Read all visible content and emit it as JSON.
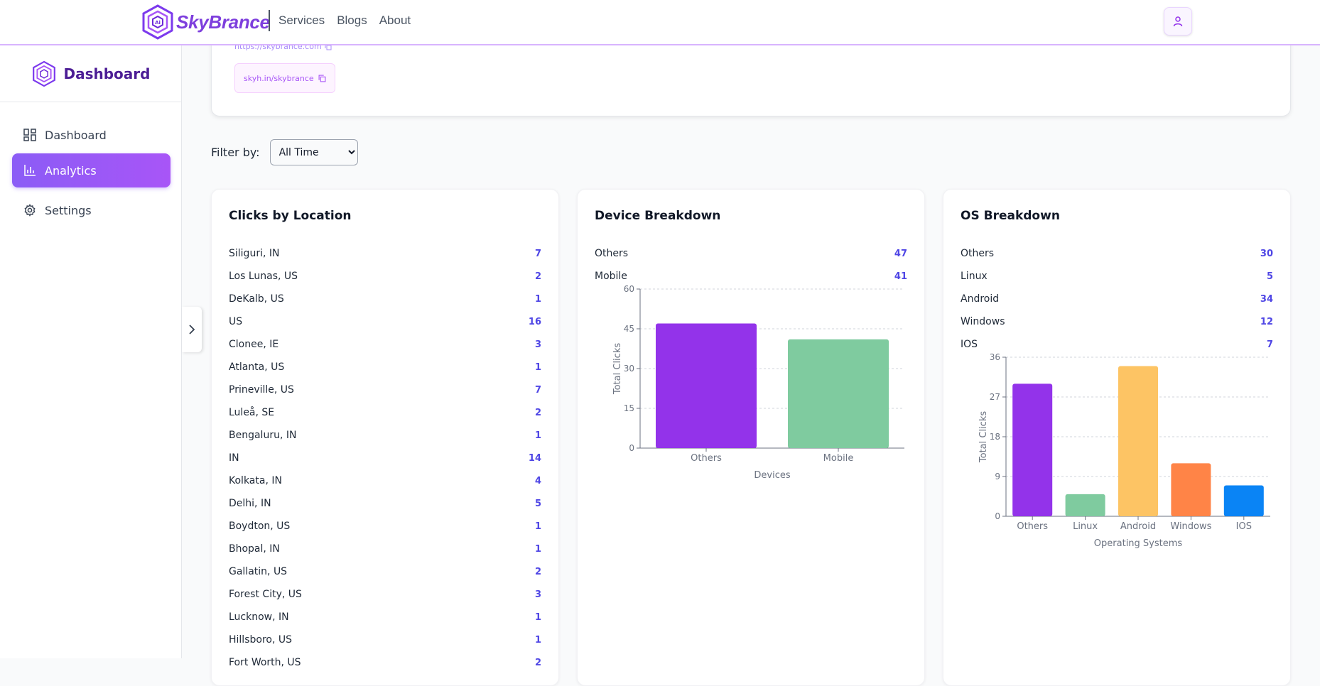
{
  "brand": {
    "name": "SkyBrance"
  },
  "nav": {
    "links": [
      "Services",
      "Blogs",
      "About"
    ]
  },
  "sidebar": {
    "title": "Dashboard",
    "items": [
      {
        "label": "Dashboard",
        "icon": "grid-icon"
      },
      {
        "label": "Analytics",
        "icon": "bar-chart-icon",
        "active": true
      },
      {
        "label": "Settings",
        "icon": "gear-icon"
      }
    ]
  },
  "link": {
    "original": "https://skybrance.com",
    "short": "skyh.in/skybrance"
  },
  "filter": {
    "label": "Filter by:",
    "selected": "All Time"
  },
  "location": {
    "title": "Clicks by Location",
    "rows": [
      {
        "name": "Siliguri, IN",
        "value": "7"
      },
      {
        "name": "Los Lunas, US",
        "value": "2"
      },
      {
        "name": "DeKalb, US",
        "value": "1"
      },
      {
        "name": "US",
        "value": "16"
      },
      {
        "name": "Clonee, IE",
        "value": "3"
      },
      {
        "name": "Atlanta, US",
        "value": "1"
      },
      {
        "name": "Prineville, US",
        "value": "7"
      },
      {
        "name": "Luleå, SE",
        "value": "2"
      },
      {
        "name": "Bengaluru, IN",
        "value": "1"
      },
      {
        "name": "IN",
        "value": "14"
      },
      {
        "name": "Kolkata, IN",
        "value": "4"
      },
      {
        "name": "Delhi, IN",
        "value": "5"
      },
      {
        "name": "Boydton, US",
        "value": "1"
      },
      {
        "name": "Bhopal, IN",
        "value": "1"
      },
      {
        "name": "Gallatin, US",
        "value": "2"
      },
      {
        "name": "Forest City, US",
        "value": "3"
      },
      {
        "name": "Lucknow, IN",
        "value": "1"
      },
      {
        "name": "Hillsboro, US",
        "value": "1"
      },
      {
        "name": "Fort Worth, US",
        "value": "2"
      }
    ]
  },
  "device": {
    "title": "Device Breakdown",
    "rows": [
      {
        "name": "Others",
        "value": "47"
      },
      {
        "name": "Mobile",
        "value": "41"
      }
    ]
  },
  "os": {
    "title": "OS Breakdown",
    "rows": [
      {
        "name": "Others",
        "value": "30"
      },
      {
        "name": "Linux",
        "value": "5"
      },
      {
        "name": "Android",
        "value": "34"
      },
      {
        "name": "Windows",
        "value": "12"
      },
      {
        "name": "IOS",
        "value": "7"
      }
    ]
  },
  "chart_data": [
    {
      "type": "bar",
      "categories": [
        "Others",
        "Mobile"
      ],
      "values": [
        47,
        41
      ],
      "colors": [
        "#9333ea",
        "#7fcb9f"
      ],
      "title": "",
      "xlabel": "Devices",
      "ylabel": "Total Clicks",
      "ylim": [
        0,
        60
      ],
      "yticks": [
        0,
        15,
        30,
        45,
        60
      ],
      "grid": true
    },
    {
      "type": "bar",
      "categories": [
        "Others",
        "Linux",
        "Android",
        "Windows",
        "IOS"
      ],
      "values": [
        30,
        5,
        34,
        12,
        7
      ],
      "colors": [
        "#9333ea",
        "#7fcb9f",
        "#fdc464",
        "#ff8447",
        "#0a84f5"
      ],
      "title": "",
      "xlabel": "Operating Systems",
      "ylabel": "Total Clicks",
      "ylim": [
        0,
        36
      ],
      "yticks": [
        0,
        9,
        18,
        27,
        36
      ],
      "grid": true
    }
  ]
}
